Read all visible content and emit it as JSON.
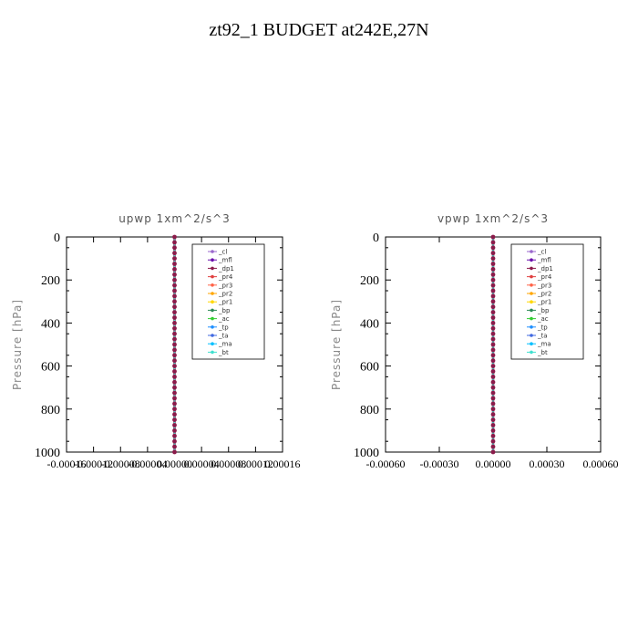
{
  "title": "zt92_1  BUDGET at242E,27N",
  "chart_data": [
    {
      "type": "line",
      "title": "upwp   1xm^2/s^3",
      "ylabel": "Pressure [hPa]",
      "ylim": [
        0,
        1000
      ],
      "xlim": [
        -0.00016,
        0.00016
      ],
      "xticks": [
        -0.00016,
        -0.00012,
        -8e-05,
        -4e-05,
        0.0,
        4e-05,
        8e-05,
        0.00012,
        0.00016
      ],
      "xticklabels": [
        "-0.00016",
        "-0.00012",
        "-0.00008",
        "-0.00004",
        "0.00000",
        "0.00004",
        "0.00008",
        "0.00012",
        "0.00016"
      ],
      "yticks": [
        0,
        200,
        400,
        600,
        800,
        1000
      ],
      "yticklabels": [
        "0",
        "200",
        "400",
        "600",
        "800",
        "1000"
      ],
      "legend_position": "top-right",
      "series": [
        {
          "name": "_cl",
          "color": "#9966cc",
          "y": [
            0,
            500,
            1000
          ],
          "x": [
            0,
            0,
            0
          ]
        },
        {
          "name": "_mfl",
          "color": "#6a0dad",
          "y": [
            0,
            500,
            1000
          ],
          "x": [
            0,
            0,
            0
          ]
        },
        {
          "name": "_dp1",
          "color": "#8b1a4a",
          "y": [
            0,
            500,
            1000
          ],
          "x": [
            0,
            0,
            0
          ]
        },
        {
          "name": "_pr4",
          "color": "#e04040",
          "y": [
            0,
            500,
            1000
          ],
          "x": [
            0,
            0,
            0
          ]
        },
        {
          "name": "_pr3",
          "color": "#ff6347",
          "y": [
            0,
            500,
            1000
          ],
          "x": [
            0,
            0,
            0
          ]
        },
        {
          "name": "_pr2",
          "color": "#ffa500",
          "y": [
            0,
            500,
            1000
          ],
          "x": [
            0,
            0,
            0
          ]
        },
        {
          "name": "_pr1",
          "color": "#ffd700",
          "y": [
            0,
            500,
            1000
          ],
          "x": [
            0,
            0,
            0
          ]
        },
        {
          "name": "_bp",
          "color": "#2e8b57",
          "y": [
            0,
            500,
            1000
          ],
          "x": [
            0,
            0,
            0
          ]
        },
        {
          "name": "_ac",
          "color": "#32cd32",
          "y": [
            0,
            500,
            1000
          ],
          "x": [
            0,
            0,
            0
          ]
        },
        {
          "name": "_tp",
          "color": "#1e90ff",
          "y": [
            0,
            500,
            1000
          ],
          "x": [
            0,
            0,
            0
          ]
        },
        {
          "name": "_ta",
          "color": "#4169e1",
          "y": [
            0,
            500,
            1000
          ],
          "x": [
            0,
            0,
            0
          ]
        },
        {
          "name": "_ma",
          "color": "#00bfff",
          "y": [
            0,
            500,
            1000
          ],
          "x": [
            0,
            0,
            0
          ]
        },
        {
          "name": "_bt",
          "color": "#40e0d0",
          "y": [
            0,
            500,
            1000
          ],
          "x": [
            0,
            0,
            0
          ]
        }
      ]
    },
    {
      "type": "line",
      "title": "vpwp   1xm^2/s^3",
      "ylabel": "Pressure [hPa]",
      "ylim": [
        0,
        1000
      ],
      "xlim": [
        -0.0006,
        0.0006
      ],
      "xticks": [
        -0.0006,
        -0.0003,
        0.0,
        0.0003,
        0.0006
      ],
      "xticklabels": [
        "-0.00060",
        "-0.00030",
        "0.00000",
        "0.00030",
        "0.00060"
      ],
      "yticks": [
        0,
        200,
        400,
        600,
        800,
        1000
      ],
      "yticklabels": [
        "0",
        "200",
        "400",
        "600",
        "800",
        "1000"
      ],
      "legend_position": "top-right",
      "series": [
        {
          "name": "_cl",
          "color": "#9966cc",
          "y": [
            0,
            500,
            1000
          ],
          "x": [
            0,
            0,
            0
          ]
        },
        {
          "name": "_mfl",
          "color": "#6a0dad",
          "y": [
            0,
            500,
            1000
          ],
          "x": [
            0,
            0,
            0
          ]
        },
        {
          "name": "_dp1",
          "color": "#8b1a4a",
          "y": [
            0,
            500,
            1000
          ],
          "x": [
            0,
            0,
            0
          ]
        },
        {
          "name": "_pr4",
          "color": "#e04040",
          "y": [
            0,
            500,
            1000
          ],
          "x": [
            0,
            0,
            0
          ]
        },
        {
          "name": "_pr3",
          "color": "#ff6347",
          "y": [
            0,
            500,
            1000
          ],
          "x": [
            0,
            0,
            0
          ]
        },
        {
          "name": "_pr2",
          "color": "#ffa500",
          "y": [
            0,
            500,
            1000
          ],
          "x": [
            0,
            0,
            0
          ]
        },
        {
          "name": "_pr1",
          "color": "#ffd700",
          "y": [
            0,
            500,
            1000
          ],
          "x": [
            0,
            0,
            0
          ]
        },
        {
          "name": "_bp",
          "color": "#2e8b57",
          "y": [
            0,
            500,
            1000
          ],
          "x": [
            0,
            0,
            0
          ]
        },
        {
          "name": "_ac",
          "color": "#32cd32",
          "y": [
            0,
            500,
            1000
          ],
          "x": [
            0,
            0,
            0
          ]
        },
        {
          "name": "_tp",
          "color": "#1e90ff",
          "y": [
            0,
            500,
            1000
          ],
          "x": [
            0,
            0,
            0
          ]
        },
        {
          "name": "_ta",
          "color": "#4169e1",
          "y": [
            0,
            500,
            1000
          ],
          "x": [
            0,
            0,
            0
          ]
        },
        {
          "name": "_ma",
          "color": "#00bfff",
          "y": [
            0,
            500,
            1000
          ],
          "x": [
            0,
            0,
            0
          ]
        },
        {
          "name": "_bt",
          "color": "#40e0d0",
          "y": [
            0,
            500,
            1000
          ],
          "x": [
            0,
            0,
            0
          ]
        }
      ]
    }
  ]
}
